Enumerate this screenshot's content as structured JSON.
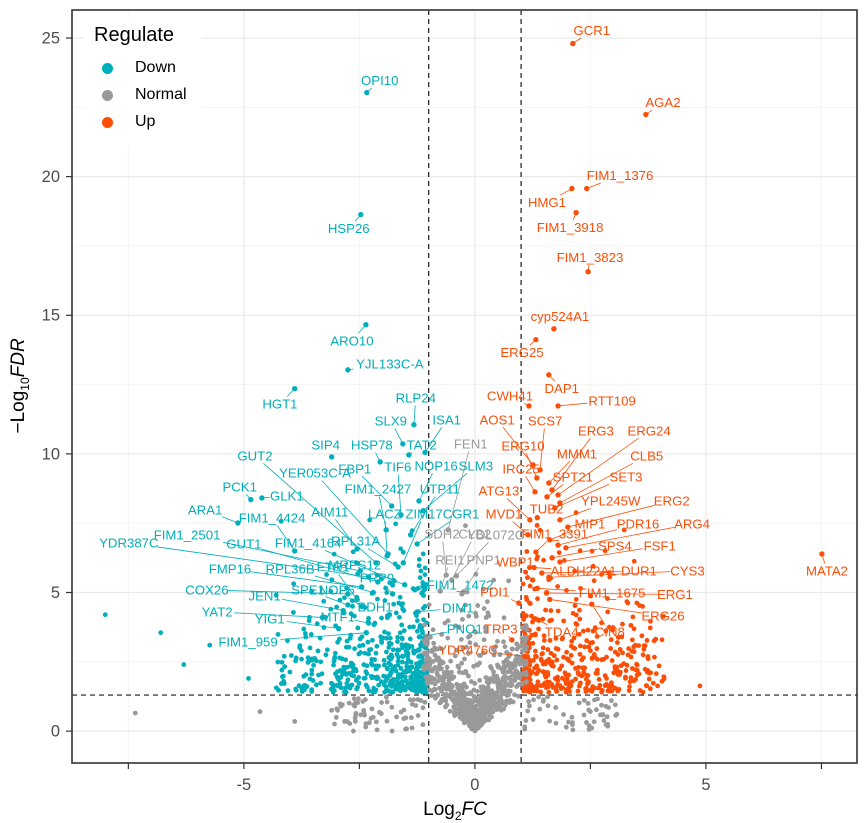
{
  "legend": {
    "title": "Regulate",
    "items": [
      {
        "label": "Down",
        "key": "d"
      },
      {
        "label": "Normal",
        "key": "n"
      },
      {
        "label": "Up",
        "key": "u"
      }
    ]
  },
  "colors": {
    "d": "#00AFBB",
    "n": "#999999",
    "u": "#FC4E07",
    "grid_major": "#EBEBEB",
    "grid_minor": "#F5F5F5",
    "panel_border": "#333333",
    "tick_text": "#4D4D4D",
    "threshold_line": "#1A1A1A"
  },
  "chart_data": {
    "type": "scatter",
    "subtype": "volcano",
    "title": "",
    "xlabel": "Log2FC",
    "ylabel": "-Log10FDR",
    "legend_title": "Regulate",
    "legend_position": "top-left-inside",
    "grid": true,
    "axes": {
      "x": {
        "label_prefix": "Log",
        "label_sub": "2",
        "label_suffix": "FC",
        "lim": [
          -8.72,
          8.27
        ],
        "ticks": [
          -5,
          0,
          5
        ],
        "tick_labels": [
          "-5",
          "0",
          "5"
        ],
        "minor": [
          -7.5,
          -2.5,
          2.5,
          7.5
        ],
        "tick_marks": [
          -7.5,
          -5,
          -2.5,
          0,
          2.5,
          5,
          7.5
        ]
      },
      "y": {
        "label_prefix": "−Log",
        "label_sub": "10",
        "label_suffix": "FDR",
        "lim": [
          -1.15,
          26.01
        ],
        "ticks": [
          0,
          5,
          10,
          15,
          20,
          25
        ],
        "tick_labels": [
          "0",
          "5",
          "10",
          "15",
          "20",
          "25"
        ],
        "minor": [
          2.5,
          7.5,
          12.5,
          17.5,
          22.5
        ]
      }
    },
    "thresholds": {
      "x": [
        -1,
        1
      ],
      "y": [
        1.301
      ]
    },
    "groups": {
      "d": "Down",
      "n": "Normal",
      "u": "Up"
    },
    "labeled_points": [
      [
        "GCR1",
        "u",
        2.12,
        24.8,
        2.53,
        25.27
      ],
      [
        "AGA2",
        "u",
        3.7,
        22.24,
        4.07,
        22.67
      ],
      [
        "FIM1_1376",
        "u",
        2.42,
        19.57,
        3.14,
        20.04
      ],
      [
        "HMG1",
        "u",
        2.1,
        19.57,
        1.56,
        19.06
      ],
      [
        "FIM1_3918",
        "u",
        2.19,
        18.7,
        2.06,
        18.16
      ],
      [
        "FIM1_3823",
        "u",
        2.45,
        16.57,
        2.49,
        17.08
      ],
      [
        "cyp524A1",
        "u",
        1.71,
        14.51,
        1.84,
        14.95
      ],
      [
        "ERG25",
        "u",
        1.32,
        14.12,
        1.02,
        13.65
      ],
      [
        "DAP1",
        "u",
        1.6,
        12.85,
        1.88,
        12.35
      ],
      [
        "CWH41",
        "u",
        1.17,
        11.73,
        0.76,
        12.09
      ],
      [
        "RTT109",
        "u",
        1.8,
        11.73,
        2.97,
        11.91
      ],
      [
        "AOS1",
        "u",
        1.26,
        9.6,
        0.48,
        11.23
      ],
      [
        "SCS7",
        "u",
        1.41,
        9.42,
        1.52,
        11.19
      ],
      [
        "ERG3",
        "u",
        1.67,
        8.7,
        2.62,
        10.83
      ],
      [
        "ERG24",
        "u",
        1.8,
        8.52,
        3.77,
        10.83
      ],
      [
        "ERG10",
        "u",
        1.34,
        9.13,
        1.04,
        10.29
      ],
      [
        "MMM1",
        "u",
        1.6,
        8.95,
        2.21,
        10.0
      ],
      [
        "CLB5",
        "u",
        1.84,
        8.23,
        3.72,
        9.93
      ],
      [
        "IRC25",
        "u",
        1.3,
        8.63,
        1.0,
        9.46
      ],
      [
        "SPT21",
        "u",
        1.56,
        8.45,
        2.12,
        9.17
      ],
      [
        "SET3",
        "u",
        1.73,
        8.05,
        3.27,
        9.17
      ],
      [
        "ATG13",
        "u",
        1.19,
        7.62,
        0.52,
        8.66
      ],
      [
        "TUB2",
        "u",
        1.35,
        7.7,
        1.55,
        8.01
      ],
      [
        "YPL245W",
        "u",
        1.84,
        7.62,
        2.94,
        8.3
      ],
      [
        "ERG2",
        "u",
        2.01,
        7.36,
        4.26,
        8.3
      ],
      [
        "MVD1",
        "u",
        1.15,
        7.08,
        0.63,
        7.83
      ],
      [
        "MIP1",
        "u",
        1.62,
        6.9,
        2.49,
        7.47
      ],
      [
        "PDR16",
        "u",
        1.8,
        6.71,
        3.53,
        7.47
      ],
      [
        "ARG4",
        "u",
        1.97,
        6.61,
        4.7,
        7.47
      ],
      [
        "FIM1_3391",
        "u",
        1.32,
        6.46,
        1.73,
        7.11
      ],
      [
        "SPS4",
        "u",
        1.67,
        6.25,
        3.03,
        6.68
      ],
      [
        "FSF1",
        "u",
        1.84,
        6.1,
        4.0,
        6.68
      ],
      [
        "WBP1",
        "u",
        1.25,
        5.45,
        0.87,
        6.1
      ],
      [
        "ALDH22A1",
        "u",
        1.28,
        5.9,
        2.35,
        5.78
      ],
      [
        "DUR1",
        "u",
        1.45,
        5.7,
        3.55,
        5.78
      ],
      [
        "CYS3",
        "u",
        1.6,
        5.55,
        4.6,
        5.78
      ],
      [
        "MATA2",
        "u",
        7.51,
        6.39,
        7.62,
        5.78
      ],
      [
        "FIM1_1675",
        "u",
        1.35,
        5.15,
        2.97,
        4.98
      ],
      [
        "ERG1",
        "u",
        1.55,
        4.98,
        4.33,
        4.93
      ],
      [
        "ERG26",
        "u",
        1.62,
        4.75,
        4.07,
        4.15
      ],
      [
        "TDA4",
        "u",
        1.38,
        4.0,
        1.88,
        3.57
      ],
      [
        "CIN8",
        "u",
        2.53,
        4.58,
        2.92,
        3.57
      ],
      [
        "PDI1",
        "u",
        0.95,
        4.62,
        0.43,
        5.02
      ],
      [
        "TRP3",
        "u",
        0.8,
        3.29,
        0.56,
        3.68
      ],
      [
        "YDR476C",
        "u",
        1.08,
        2.7,
        -0.15,
        2.92
      ],
      [
        "OPI10",
        "d",
        -2.34,
        23.03,
        -2.06,
        23.47
      ],
      [
        "HSP26",
        "d",
        -2.47,
        18.63,
        -2.73,
        18.12
      ],
      [
        "ARO10",
        "d",
        -2.36,
        14.66,
        -2.66,
        14.08
      ],
      [
        "YJL133C-A",
        "d",
        -2.75,
        13.03,
        -1.84,
        13.25
      ],
      [
        "HGT1",
        "d",
        -3.9,
        12.35,
        -4.22,
        11.8
      ],
      [
        "RLP24",
        "d",
        -1.32,
        11.05,
        -1.28,
        12.02
      ],
      [
        "SLX9",
        "d",
        -1.56,
        10.36,
        -1.82,
        11.19
      ],
      [
        "ISA1",
        "d",
        -1.08,
        10.05,
        -0.61,
        11.23
      ],
      [
        "SIP4",
        "d",
        -3.1,
        9.89,
        -3.23,
        10.32
      ],
      [
        "HSP78",
        "d",
        -2.05,
        9.71,
        -2.23,
        10.32
      ],
      [
        "TAT2",
        "d",
        -1.43,
        9.96,
        -1.15,
        10.32
      ],
      [
        "GUT2",
        "d",
        -2.14,
        6.07,
        -4.76,
        9.93
      ],
      [
        "YER053C-A",
        "d",
        -1.88,
        6.39,
        -3.46,
        9.31
      ],
      [
        "FBP1",
        "d",
        -1.8,
        8.12,
        -2.6,
        9.46
      ],
      [
        "TIF6",
        "d",
        -1.6,
        7.8,
        -1.67,
        9.53
      ],
      [
        "NOP16",
        "d",
        -1.21,
        8.3,
        -0.84,
        9.57
      ],
      [
        "SLM3",
        "d",
        -1.12,
        7.95,
        0.02,
        9.57
      ],
      [
        "PCK1",
        "d",
        -4.85,
        8.35,
        -5.09,
        8.81
      ],
      [
        "GLK1",
        "d",
        -4.61,
        8.41,
        -4.07,
        8.48
      ],
      [
        "ARA1",
        "d",
        -5.13,
        7.51,
        -5.84,
        7.98
      ],
      [
        "FIM1_4424",
        "d",
        -3.9,
        6.5,
        -4.39,
        7.69
      ],
      [
        "AIM11",
        "d",
        -2.55,
        6.57,
        -3.14,
        7.91
      ],
      [
        "LACZ",
        "d",
        -1.9,
        6.32,
        -1.95,
        7.83
      ],
      [
        "ZIM17",
        "d",
        -1.55,
        6.07,
        -1.1,
        7.83
      ],
      [
        "FIM1_2427",
        "d",
        -1.92,
        7.26,
        -2.1,
        8.73
      ],
      [
        "UTP11",
        "d",
        -1.39,
        7.08,
        -0.76,
        8.73
      ],
      [
        "CGR1",
        "d",
        -1.25,
        6.75,
        -0.3,
        7.83
      ],
      [
        "FIM1_2501",
        "d",
        -2.48,
        5.78,
        -6.23,
        7.08
      ],
      [
        "YDR387C",
        "d",
        -2.3,
        5.56,
        -7.49,
        6.79
      ],
      [
        "GUT1",
        "d",
        -2.1,
        5.38,
        -5.0,
        6.75
      ],
      [
        "FIM1_4164",
        "d",
        -1.75,
        5.42,
        -3.61,
        6.79
      ],
      [
        "RPL31A",
        "d",
        -1.66,
        5.92,
        -2.58,
        6.86
      ],
      [
        "MRPS12",
        "d",
        -1.52,
        5.28,
        -2.6,
        5.99
      ],
      [
        "FMP16",
        "d",
        -2.45,
        5.2,
        -5.3,
        5.85
      ],
      [
        "RPL36B",
        "d",
        -2.2,
        5.0,
        -4.0,
        5.85
      ],
      [
        "FTR1",
        "d",
        -2.55,
        4.75,
        -3.07,
        5.92
      ],
      [
        "PRP9",
        "d",
        -1.78,
        4.95,
        -2.12,
        5.52
      ],
      [
        "COX26",
        "d",
        -2.75,
        4.95,
        -5.8,
        5.09
      ],
      [
        "JEN1",
        "d",
        -2.85,
        4.35,
        -4.55,
        4.87
      ],
      [
        "SPE1",
        "d",
        -2.75,
        4.55,
        -3.61,
        5.09
      ],
      [
        "NOP6",
        "d",
        -2.45,
        4.5,
        -2.99,
        5.09
      ],
      [
        "YAT2",
        "d",
        -3.3,
        4.1,
        -5.58,
        4.3
      ],
      [
        "YIG1",
        "d",
        -2.95,
        3.7,
        -4.44,
        4.04
      ],
      [
        "MTF1",
        "d",
        -2.3,
        3.9,
        -2.97,
        4.12
      ],
      [
        "BDH1",
        "d",
        -1.85,
        4.2,
        -2.16,
        4.48
      ],
      [
        "FIM1_959",
        "d",
        -2.35,
        3.55,
        -4.91,
        3.21
      ],
      [
        "FIM1_1472",
        "d",
        -1.3,
        5.1,
        -0.32,
        5.27
      ],
      [
        "DIM1",
        "d",
        -1.25,
        4.3,
        -0.37,
        4.44
      ],
      [
        "PNO1",
        "d",
        -1.2,
        3.4,
        -0.22,
        3.68
      ],
      [
        "FEN1",
        "n",
        -0.58,
        7.26,
        -0.09,
        10.36
      ],
      [
        "SDH2",
        "n",
        -0.62,
        5.63,
        -0.71,
        7.11
      ],
      [
        "CLB2",
        "n",
        -0.5,
        5.45,
        0.0,
        7.11
      ],
      [
        "YDL072C",
        "n",
        -0.4,
        5.6,
        0.45,
        7.08
      ],
      [
        "REI1",
        "n",
        -0.75,
        5.05,
        -0.54,
        6.17
      ],
      [
        "PNP1",
        "n",
        -0.28,
        4.95,
        0.19,
        6.17
      ]
    ],
    "background": {
      "seed": 20240607,
      "clouds": [
        {
          "type": "side",
          "g": "d",
          "n": 500,
          "x0": -1.03,
          "dir": -1,
          "spread": 3.2,
          "pow": 2.0,
          "ybase": 1.4,
          "yscale": 1.35,
          "ymax": 8.4
        },
        {
          "type": "side",
          "g": "u",
          "n": 440,
          "x0": 1.03,
          "dir": 1,
          "spread": 3.0,
          "pow": 2.0,
          "ybase": 1.4,
          "yscale": 1.35,
          "ymax": 8.4
        },
        {
          "type": "vee",
          "g": "n",
          "n": 620,
          "xspread": 1.12,
          "ymax": 8.0
        },
        {
          "type": "column",
          "g": "n",
          "n": 150,
          "xsigma": 0.38,
          "ymax": 10.8
        },
        {
          "type": "wings",
          "g": "n",
          "n": 110,
          "xmin": 1.05,
          "xmax": 3.1,
          "ymax": 1.25
        }
      ],
      "extras": {
        "d": [
          [
            -8.0,
            4.2
          ],
          [
            -6.8,
            3.55
          ],
          [
            -5.74,
            3.1
          ],
          [
            -6.3,
            2.4
          ],
          [
            -4.9,
            1.9
          ],
          [
            -3.75,
            1.55
          ],
          [
            -4.3,
            4.9
          ]
        ],
        "u": [
          [
            4.87,
            1.63
          ],
          [
            2.95,
            3.3
          ],
          [
            3.42,
            4.12
          ],
          [
            3.31,
            4.62
          ],
          [
            2.5,
            2.9
          ]
        ],
        "n": [
          [
            -2.6,
            0.9
          ],
          [
            -3.1,
            0.75
          ],
          [
            -2.2,
            0.5
          ],
          [
            -1.9,
            1.05
          ],
          [
            1.75,
            0.85
          ],
          [
            2.1,
            0.5
          ],
          [
            2.45,
            1.0
          ],
          [
            -3.9,
            0.35
          ],
          [
            -7.35,
            0.65
          ],
          [
            -4.65,
            0.7
          ]
        ]
      }
    }
  }
}
